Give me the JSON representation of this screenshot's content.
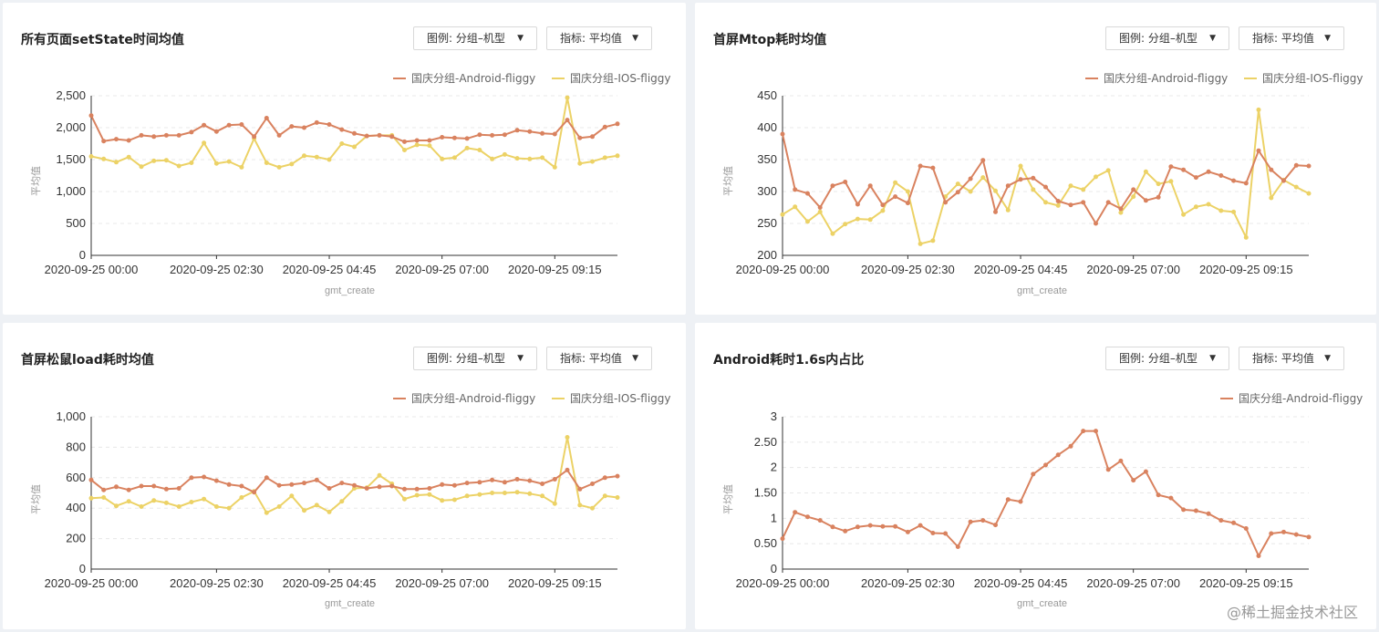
{
  "controls": {
    "legend_dropdown": "图例: 分组–机型",
    "metric_dropdown": "指标: 平均值"
  },
  "watermark": "@稀土掘金技术社区",
  "colors": {
    "android": "#d9825f",
    "ios": "#ecd266",
    "grid": "#e8e8e8",
    "axis": "#333333"
  },
  "chart_data": [
    {
      "type": "line",
      "title": "所有页面setState时间均值",
      "xlabel": "gmt_create",
      "ylabel": "平均值",
      "ylim": [
        0,
        2500
      ],
      "yticks": [
        0,
        500,
        1000,
        1500,
        2000,
        2500
      ],
      "ytick_labels": [
        "0",
        "500",
        "1,000",
        "1,500",
        "2,000",
        "2,500"
      ],
      "xtick_labels": [
        "2020-09-25 00:00",
        "2020-09-25 02:30",
        "2020-09-25 04:45",
        "2020-09-25 07:00",
        "2020-09-25 09:15"
      ],
      "legend_position": "top-right",
      "series": [
        {
          "name": "国庆分组-Android-fliggy",
          "values": [
            2190,
            1790,
            1820,
            1800,
            1880,
            1860,
            1880,
            1880,
            1930,
            2040,
            1940,
            2040,
            2050,
            1860,
            2150,
            1880,
            2020,
            2000,
            2080,
            2050,
            1970,
            1910,
            1870,
            1880,
            1860,
            1780,
            1800,
            1800,
            1850,
            1840,
            1830,
            1890,
            1880,
            1890,
            1960,
            1940,
            1910,
            1900,
            2120,
            1840,
            1860,
            2010,
            2060
          ]
        },
        {
          "name": "国庆分组-IOS-fliggy",
          "values": [
            1550,
            1510,
            1460,
            1540,
            1390,
            1480,
            1490,
            1400,
            1450,
            1760,
            1440,
            1470,
            1380,
            1830,
            1450,
            1380,
            1430,
            1560,
            1540,
            1500,
            1750,
            1700,
            1870,
            1880,
            1880,
            1650,
            1730,
            1720,
            1510,
            1530,
            1680,
            1650,
            1510,
            1580,
            1520,
            1510,
            1530,
            1380,
            2470,
            1440,
            1470,
            1530,
            1560
          ]
        }
      ]
    },
    {
      "type": "line",
      "title": "首屏Mtop耗时均值",
      "xlabel": "gmt_create",
      "ylabel": "平均值",
      "ylim": [
        200,
        450
      ],
      "yticks": [
        200,
        250,
        300,
        350,
        400,
        450
      ],
      "ytick_labels": [
        "200",
        "250",
        "300",
        "350",
        "400",
        "450"
      ],
      "xtick_labels": [
        "2020-09-25 00:00",
        "2020-09-25 02:30",
        "2020-09-25 04:45",
        "2020-09-25 07:00",
        "2020-09-25 09:15"
      ],
      "legend_position": "top-right",
      "series": [
        {
          "name": "国庆分组-Android-fliggy",
          "values": [
            390,
            303,
            297,
            275,
            309,
            315,
            280,
            309,
            279,
            292,
            282,
            340,
            337,
            283,
            299,
            320,
            349,
            268,
            309,
            319,
            321,
            307,
            285,
            279,
            283,
            250,
            283,
            273,
            303,
            286,
            291,
            339,
            334,
            322,
            331,
            325,
            317,
            313,
            364,
            334,
            317,
            341,
            340
          ]
        },
        {
          "name": "国庆分组-IOS-fliggy",
          "values": [
            264,
            276,
            253,
            268,
            234,
            249,
            257,
            256,
            270,
            314,
            300,
            218,
            223,
            292,
            312,
            300,
            322,
            301,
            271,
            340,
            303,
            283,
            278,
            309,
            303,
            323,
            333,
            267,
            292,
            331,
            312,
            316,
            264,
            276,
            280,
            270,
            268,
            228,
            428,
            290,
            318,
            307,
            297
          ]
        }
      ]
    },
    {
      "type": "line",
      "title": "首屏松鼠load耗时均值",
      "xlabel": "gmt_create",
      "ylabel": "平均值",
      "ylim": [
        0,
        1000
      ],
      "yticks": [
        0,
        200,
        400,
        600,
        800,
        1000
      ],
      "ytick_labels": [
        "0",
        "200",
        "400",
        "600",
        "800",
        "1,000"
      ],
      "xtick_labels": [
        "2020-09-25 00:00",
        "2020-09-25 02:30",
        "2020-09-25 04:45",
        "2020-09-25 07:00",
        "2020-09-25 09:15"
      ],
      "legend_position": "top-right",
      "series": [
        {
          "name": "国庆分组-Android-fliggy",
          "values": [
            585,
            520,
            540,
            520,
            545,
            545,
            525,
            530,
            600,
            605,
            580,
            555,
            545,
            505,
            600,
            550,
            555,
            565,
            585,
            530,
            565,
            550,
            530,
            540,
            545,
            525,
            525,
            530,
            555,
            550,
            565,
            570,
            585,
            570,
            590,
            580,
            560,
            590,
            650,
            525,
            560,
            600,
            610
          ]
        },
        {
          "name": "国庆分组-IOS-fliggy",
          "values": [
            465,
            470,
            415,
            445,
            410,
            450,
            435,
            410,
            440,
            460,
            410,
            400,
            470,
            510,
            370,
            410,
            480,
            385,
            420,
            375,
            445,
            530,
            535,
            615,
            560,
            460,
            485,
            490,
            450,
            455,
            480,
            490,
            500,
            500,
            505,
            495,
            480,
            430,
            865,
            420,
            400,
            480,
            470
          ]
        }
      ]
    },
    {
      "type": "line",
      "title": "Android耗时1.6s内占比",
      "xlabel": "gmt_create",
      "ylabel": "平均值",
      "ylim": [
        0,
        3
      ],
      "yticks": [
        0,
        0.5,
        1,
        1.5,
        2,
        2.5,
        3
      ],
      "ytick_labels": [
        "0",
        "0.50",
        "1",
        "1.50",
        "2",
        "2.50",
        "3"
      ],
      "xtick_labels": [
        "2020-09-25 00:00",
        "2020-09-25 02:30",
        "2020-09-25 04:45",
        "2020-09-25 07:00",
        "2020-09-25 09:15"
      ],
      "legend_position": "top-right",
      "series": [
        {
          "name": "国庆分组-Android-fliggy",
          "values": [
            0.6,
            1.12,
            1.03,
            0.96,
            0.83,
            0.75,
            0.83,
            0.86,
            0.84,
            0.84,
            0.73,
            0.86,
            0.71,
            0.7,
            0.44,
            0.93,
            0.96,
            0.87,
            1.37,
            1.33,
            1.87,
            2.05,
            2.25,
            2.42,
            2.72,
            2.72,
            1.96,
            2.13,
            1.75,
            1.92,
            1.46,
            1.4,
            1.17,
            1.15,
            1.09,
            0.96,
            0.91,
            0.8,
            0.26,
            0.7,
            0.73,
            0.68,
            0.63
          ]
        }
      ]
    }
  ]
}
